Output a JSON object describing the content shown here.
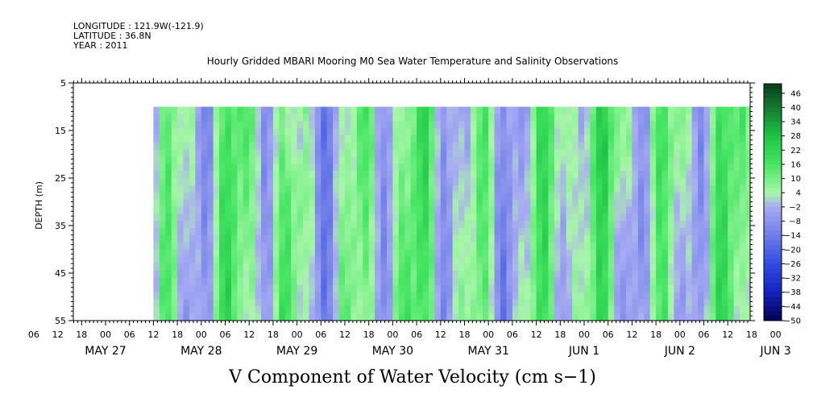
{
  "header": {
    "longitude": "LONGITUDE : 121.9W(-121.9)",
    "latitude": "LATITUDE : 36.8N",
    "year": "YEAR : 2011"
  },
  "chart_data": {
    "type": "heatmap",
    "title": "Hourly Gridded MBARI Mooring M0 Sea Water Temperature and Salinity Observations",
    "xlabel": "V Component of Water Velocity (cm s−1)",
    "ylabel": "DEPTH (m)",
    "y_axis": {
      "range": [
        5,
        55
      ],
      "inverted": true,
      "ticks": [
        5,
        15,
        25,
        35,
        45,
        55
      ],
      "data_range": [
        10,
        55
      ]
    },
    "x_axis": {
      "unit": "hours",
      "hour_ticks": [
        "06",
        "12",
        "18",
        "00",
        "06",
        "12",
        "18",
        "00",
        "06",
        "12",
        "18",
        "00",
        "06",
        "12",
        "18",
        "00",
        "06",
        "12",
        "18",
        "00",
        "06",
        "12",
        "18",
        "00",
        "06",
        "12",
        "18",
        "00",
        "06",
        "12",
        "18",
        "00"
      ],
      "date_labels": [
        "MAY 27",
        "MAY 28",
        "MAY 29",
        "MAY 30",
        "MAY 31",
        "JUN  1",
        "JUN  2",
        "JUN  3"
      ],
      "data_start_hour": "12"
    },
    "colorbar": {
      "min": -50,
      "max": 50,
      "tick_labels": [
        "46",
        "40",
        "34",
        "28",
        "22",
        "16",
        "10",
        "4",
        "−2",
        "−8",
        "−14",
        "−20",
        "−26",
        "−32",
        "−38",
        "−44",
        "−50"
      ],
      "colors": {
        "negative_low": "#000050",
        "negative_mid": "#2a3cd2",
        "negative_near_zero": "#a8aaf2",
        "positive_near_zero": "#a8f7a8",
        "positive_mid": "#25d846",
        "positive_high": "#0b3d1c"
      }
    },
    "field_pattern": "V velocity (cm/s) is approximately depth-coherent: alternating vertical bands of southward (blue, about -2 to -20 cm/s) and northward (green, about 4 to 20 cm/s) flow with tidal to near-inertial periods; values mostly between -20 and +22 cm/s, strongest green near 10-25 m around late May 31 to Jun 2, bluest near 15 m on early May 29."
  }
}
